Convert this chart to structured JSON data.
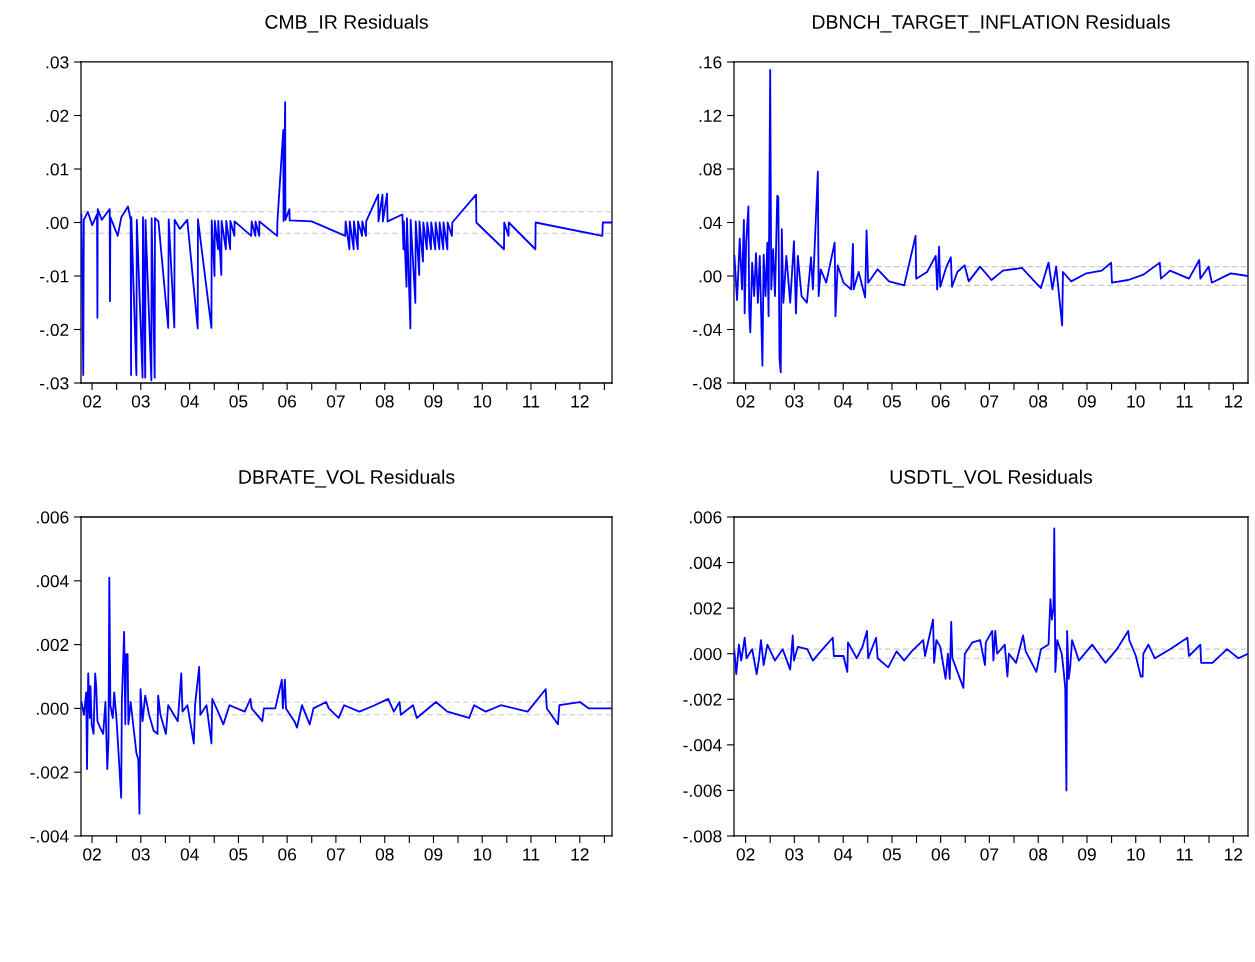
{
  "chart_data": [
    {
      "type": "line",
      "title": "CMB_IR Residuals",
      "xlim": [
        "2002-04-09",
        "2013-02-27"
      ],
      "ylim": [
        -0.03,
        0.03
      ],
      "xticks": [
        {
          "value": "2003-01-01",
          "label": null
        },
        {
          "value": "2004-01-01",
          "label": null
        },
        {
          "value": "2005-01-01",
          "label": null
        },
        {
          "value": "2006-01-01",
          "label": null
        },
        {
          "value": "2007-01-01",
          "label": null
        },
        {
          "value": "2008-01-01",
          "label": null
        },
        {
          "value": "2009-01-01",
          "label": null
        },
        {
          "value": "2010-01-01",
          "label": null
        },
        {
          "value": "2011-01-01",
          "label": null
        },
        {
          "value": "2012-01-01",
          "label": null
        },
        {
          "value": "2013-01-01",
          "label": null
        },
        {
          "value": "2002-07-01",
          "label": "02"
        },
        {
          "value": "2003-07-01",
          "label": "03"
        },
        {
          "value": "2004-07-01",
          "label": "04"
        },
        {
          "value": "2005-07-01",
          "label": "05"
        },
        {
          "value": "2006-07-01",
          "label": "06"
        },
        {
          "value": "2007-07-01",
          "label": "07"
        },
        {
          "value": "2008-07-01",
          "label": "08"
        },
        {
          "value": "2009-07-01",
          "label": "09"
        },
        {
          "value": "2010-07-01",
          "label": "10"
        },
        {
          "value": "2011-07-01",
          "label": "11"
        },
        {
          "value": "2012-07-01",
          "label": "12"
        }
      ],
      "yticks": [
        {
          "value": -0.03,
          "label": "-.03"
        },
        {
          "value": -0.02,
          "label": "-.02"
        },
        {
          "value": -0.01,
          "label": "-.01"
        },
        {
          "value": 0,
          "label": ".00"
        },
        {
          "value": 0.01,
          "label": ".01"
        },
        {
          "value": 0.02,
          "label": ".02"
        },
        {
          "value": 0.03,
          "label": ".03"
        }
      ],
      "ref_lines": [
        {
          "axis": "y",
          "value": 0.002,
          "color": "#c8c8c8",
          "line_style": "dashed"
        },
        {
          "axis": "y",
          "value": -0.002,
          "color": "#c8c8c8",
          "line_style": "dashed"
        }
      ],
      "series": [
        {
          "color": "#0000ff",
          "x": [
            "2002-04-12",
            "2002-04-26",
            "2002-04-30",
            "2002-05-30",
            "2002-07-02",
            "2002-08-07",
            "2002-08-10",
            "2002-08-12",
            "2002-09-12",
            "2002-11-10",
            "2002-11-12",
            "2002-11-15",
            "2003-01-09",
            "2003-02-05",
            "2003-03-27",
            "2003-04-16",
            "2003-04-19",
            "2003-04-21",
            "2003-05-29",
            "2003-06-01",
            "2003-07-14",
            "2003-07-17",
            "2003-08-03",
            "2003-08-05",
            "2003-09-18",
            "2003-09-20",
            "2003-10-13",
            "2003-10-15",
            "2003-11-10",
            "2004-01-22",
            "2004-01-26",
            "2004-03-08",
            "2004-03-10",
            "2004-04-19",
            "2004-06-13",
            "2004-08-30",
            "2004-09-01",
            "2004-12-11",
            "2004-12-13",
            "2005-01-03",
            "2005-01-05",
            "2005-01-29",
            "2005-01-31",
            "2005-02-23",
            "2005-02-25",
            "2005-03-29",
            "2005-04-01",
            "2005-04-30",
            "2005-05-02",
            "2005-06-01",
            "2005-06-02",
            "2005-10-05",
            "2005-10-08",
            "2005-11-05",
            "2005-11-06",
            "2005-12-04",
            "2005-12-05",
            "2006-04-17",
            "2006-04-19",
            "2006-06-02",
            "2006-06-04",
            "2006-06-16",
            "2006-06-18",
            "2006-07-18",
            "2006-07-20",
            "2007-01-01",
            "2007-09-09",
            "2007-09-12",
            "2007-10-10",
            "2007-10-13",
            "2007-11-11",
            "2007-11-13",
            "2007-12-12",
            "2007-12-14",
            "2008-01-13",
            "2008-01-15",
            "2008-02-11",
            "2008-02-13",
            "2008-05-13",
            "2008-05-15",
            "2008-06-14",
            "2008-06-17",
            "2008-07-18",
            "2008-07-22",
            "2008-11-10",
            "2008-11-18",
            "2008-11-21",
            "2008-12-11",
            "2008-12-14",
            "2009-01-09",
            "2009-01-11",
            "2009-02-15",
            "2009-02-18",
            "2009-03-16",
            "2009-03-18",
            "2009-04-13",
            "2009-04-16",
            "2009-05-12",
            "2009-05-15",
            "2009-06-12",
            "2009-06-14",
            "2009-07-14",
            "2009-07-17",
            "2009-08-14",
            "2009-08-16",
            "2009-09-12",
            "2009-09-14",
            "2009-10-13",
            "2009-10-15",
            "2009-11-16",
            "2009-11-19",
            "2010-05-16",
            "2010-05-18",
            "2010-12-11",
            "2010-12-13",
            "2011-01-14",
            "2011-01-16",
            "2011-08-03",
            "2011-08-05",
            "2012-12-17",
            "2012-12-20",
            "2013-02-27"
          ],
          "values": [
            0.0015,
            -0.0285,
            0.0005,
            0.002,
            -0.0005,
            0.0015,
            -0.0178,
            0.0025,
            0.0005,
            0.0025,
            -0.0147,
            0.001,
            -0.0025,
            0.001,
            0.003,
            0.0005,
            -0.0285,
            0.001,
            -0.0285,
            0.0005,
            -0.029,
            0.001,
            -0.029,
            0.0005,
            -0.0295,
            0.0008,
            -0.029,
            0.0008,
            0.0002,
            -0.0197,
            0.0006,
            -0.0196,
            0.0005,
            -0.0012,
            0.0005,
            -0.0198,
            0.0006,
            -0.0197,
            0.0004,
            -0.01,
            0.0003,
            -0.005,
            0.0003,
            -0.0098,
            0.0003,
            -0.005,
            0.0003,
            -0.005,
            0.0003,
            -0.0025,
            0.0002,
            -0.0025,
            0.0002,
            -0.0025,
            0.0002,
            -0.0025,
            0.0002,
            -0.0025,
            0.0002,
            0.0173,
            0.0003,
            0.0225,
            0.0005,
            0.0025,
            0.0004,
            0.0002,
            -0.0025,
            0.0002,
            -0.005,
            0.0002,
            -0.005,
            0.0002,
            -0.005,
            0.0002,
            -0.0025,
            0.0002,
            -0.0025,
            0.0002,
            0.0052,
            0.0002,
            0.0052,
            0.0002,
            0.0054,
            0.0002,
            0.0015,
            -0.005,
            0.0002,
            -0.012,
            0.0008,
            -0.0198,
            0.0005,
            -0.015,
            0.0002,
            -0.0098,
            0.0002,
            -0.0073,
            0.0,
            -0.005,
            0.0,
            -0.005,
            0.0,
            -0.005,
            0.0,
            -0.005,
            0.0,
            -0.005,
            0.0,
            -0.005,
            0.0,
            -0.0025,
            0.0,
            0.0052,
            0.0,
            -0.005,
            0.0,
            -0.0025,
            0.0,
            -0.005,
            0.0,
            -0.0025,
            0.0,
            0.0
          ]
        }
      ]
    },
    {
      "type": "line",
      "title": "DBNCH_TARGET_INFLATION Residuals",
      "xlim": [
        "2002-04-05",
        "2012-10-19"
      ],
      "ylim": [
        -0.08,
        0.16
      ],
      "xticks": [
        {
          "value": "2003-01-01",
          "label": null
        },
        {
          "value": "2004-01-01",
          "label": null
        },
        {
          "value": "2005-01-01",
          "label": null
        },
        {
          "value": "2006-01-01",
          "label": null
        },
        {
          "value": "2007-01-01",
          "label": null
        },
        {
          "value": "2008-01-01",
          "label": null
        },
        {
          "value": "2009-01-01",
          "label": null
        },
        {
          "value": "2010-01-01",
          "label": null
        },
        {
          "value": "2011-01-01",
          "label": null
        },
        {
          "value": "2012-01-01",
          "label": null
        },
        {
          "value": "2002-07-01",
          "label": "02"
        },
        {
          "value": "2003-07-01",
          "label": "03"
        },
        {
          "value": "2004-07-01",
          "label": "04"
        },
        {
          "value": "2005-07-01",
          "label": "05"
        },
        {
          "value": "2006-07-01",
          "label": "06"
        },
        {
          "value": "2007-07-01",
          "label": "07"
        },
        {
          "value": "2008-07-01",
          "label": "08"
        },
        {
          "value": "2009-07-01",
          "label": "09"
        },
        {
          "value": "2010-07-01",
          "label": "10"
        },
        {
          "value": "2011-07-01",
          "label": "11"
        },
        {
          "value": "2012-07-01",
          "label": "12"
        }
      ],
      "yticks": [
        {
          "value": -0.08,
          "label": "-.08"
        },
        {
          "value": -0.04,
          "label": "-.04"
        },
        {
          "value": 0,
          "label": ".00"
        },
        {
          "value": 0.04,
          "label": ".04"
        },
        {
          "value": 0.08,
          "label": ".08"
        },
        {
          "value": 0.12,
          "label": ".12"
        },
        {
          "value": 0.16,
          "label": ".16"
        }
      ],
      "ref_lines": [
        {
          "axis": "y",
          "value": 0.007,
          "color": "#c8c8c8",
          "line_style": "dashed"
        },
        {
          "axis": "y",
          "value": -0.007,
          "color": "#c8c8c8",
          "line_style": "dashed"
        }
      ],
      "series": [
        {
          "color": "#0000ff",
          "x": [
            "2002-04-08",
            "2002-04-28",
            "2002-05-18",
            "2002-06-04",
            "2002-06-18",
            "2002-06-24",
            "2002-07-05",
            "2002-07-22",
            "2002-07-28",
            "2002-08-05",
            "2002-08-19",
            "2002-09-03",
            "2002-09-17",
            "2002-10-01",
            "2002-10-15",
            "2002-11-04",
            "2002-11-13",
            "2002-11-27",
            "2002-12-11",
            "2002-12-20",
            "2003-01-01",
            "2003-01-09",
            "2003-01-23",
            "2003-02-06",
            "2003-02-23",
            "2003-03-03",
            "2003-03-12",
            "2003-03-21",
            "2003-03-29",
            "2003-04-10",
            "2003-05-02",
            "2003-05-31",
            "2003-06-28",
            "2003-07-13",
            "2003-07-27",
            "2003-08-24",
            "2003-10-03",
            "2003-11-03",
            "2003-11-17",
            "2003-12-24",
            "2003-12-30",
            "2004-01-14",
            "2004-02-25",
            "2004-04-28",
            "2004-05-04",
            "2004-05-21",
            "2004-07-03",
            "2004-08-29",
            "2004-09-12",
            "2004-09-17",
            "2004-10-25",
            "2004-12-12",
            "2004-12-23",
            "2005-01-04",
            "2005-03-16",
            "2005-06-09",
            "2005-10-01",
            "2005-12-25",
            "2005-12-30",
            "2006-03-21",
            "2006-05-25",
            "2006-06-05",
            "2006-06-19",
            "2006-06-28",
            "2006-08-10",
            "2006-09-15",
            "2006-09-24",
            "2006-11-03",
            "2006-12-27",
            "2007-01-27",
            "2007-04-22",
            "2007-07-17",
            "2007-10-10",
            "2008-03-01",
            "2008-05-25",
            "2008-07-21",
            "2008-09-16",
            "2008-10-15",
            "2008-11-12",
            "2008-12-27",
            "2009-01-02",
            "2009-03-05",
            "2009-06-27",
            "2009-10-19",
            "2009-12-29",
            "2010-01-04",
            "2010-05-06",
            "2010-08-27",
            "2010-12-28",
            "2011-01-06",
            "2011-03-15",
            "2011-08-04",
            "2011-10-20",
            "2011-10-28",
            "2011-12-29",
            "2012-01-22",
            "2012-06-12",
            "2012-10-18"
          ],
          "values": [
            0.015,
            -0.018,
            0.028,
            -0.01,
            0.042,
            -0.028,
            0.025,
            0.052,
            -0.025,
            -0.042,
            0.01,
            -0.015,
            0.017,
            -0.02,
            0.015,
            -0.067,
            0.016,
            -0.015,
            0.025,
            -0.03,
            0.154,
            -0.01,
            0.02,
            -0.015,
            0.06,
            0.059,
            -0.062,
            -0.072,
            0.035,
            -0.02,
            0.015,
            -0.02,
            0.026,
            -0.028,
            0.015,
            -0.015,
            -0.02,
            0.014,
            -0.01,
            0.078,
            -0.015,
            0.005,
            -0.005,
            0.025,
            -0.03,
            0.008,
            -0.005,
            -0.01,
            0.024,
            -0.01,
            0.003,
            -0.016,
            0.034,
            -0.005,
            0.005,
            -0.004,
            -0.007,
            0.03,
            -0.002,
            0.003,
            0.015,
            -0.01,
            0.022,
            -0.008,
            0.006,
            0.014,
            -0.008,
            0.003,
            0.008,
            -0.004,
            0.007,
            -0.003,
            0.004,
            0.006,
            -0.003,
            -0.009,
            0.01,
            -0.01,
            0.007,
            -0.037,
            0.003,
            -0.004,
            0.002,
            0.004,
            0.01,
            -0.005,
            -0.003,
            0.001,
            0.01,
            -0.002,
            0.004,
            -0.002,
            0.012,
            -0.002,
            0.007,
            -0.005,
            0.002,
            0.0
          ]
        }
      ]
    },
    {
      "type": "line",
      "title": "DBRATE_VOL Residuals",
      "xlim": [
        "2002-04-09",
        "2013-02-27"
      ],
      "ylim": [
        -0.004,
        0.006
      ],
      "xticks": [
        {
          "value": "2003-01-01",
          "label": null
        },
        {
          "value": "2004-01-01",
          "label": null
        },
        {
          "value": "2005-01-01",
          "label": null
        },
        {
          "value": "2006-01-01",
          "label": null
        },
        {
          "value": "2007-01-01",
          "label": null
        },
        {
          "value": "2008-01-01",
          "label": null
        },
        {
          "value": "2009-01-01",
          "label": null
        },
        {
          "value": "2010-01-01",
          "label": null
        },
        {
          "value": "2011-01-01",
          "label": null
        },
        {
          "value": "2012-01-01",
          "label": null
        },
        {
          "value": "2013-01-01",
          "label": null
        },
        {
          "value": "2002-07-01",
          "label": "02"
        },
        {
          "value": "2003-07-01",
          "label": "03"
        },
        {
          "value": "2004-07-01",
          "label": "04"
        },
        {
          "value": "2005-07-01",
          "label": "05"
        },
        {
          "value": "2006-07-01",
          "label": "06"
        },
        {
          "value": "2007-07-01",
          "label": "07"
        },
        {
          "value": "2008-07-01",
          "label": "08"
        },
        {
          "value": "2009-07-01",
          "label": "09"
        },
        {
          "value": "2010-07-01",
          "label": "10"
        },
        {
          "value": "2011-07-01",
          "label": "11"
        },
        {
          "value": "2012-07-01",
          "label": "12"
        }
      ],
      "yticks": [
        {
          "value": -0.004,
          "label": "-.004"
        },
        {
          "value": -0.002,
          "label": "-.002"
        },
        {
          "value": 0,
          "label": ".000"
        },
        {
          "value": 0.002,
          "label": ".002"
        },
        {
          "value": 0.004,
          "label": ".004"
        },
        {
          "value": 0.006,
          "label": ".006"
        }
      ],
      "ref_lines": [
        {
          "axis": "y",
          "value": 0.0002,
          "color": "#c8c8c8",
          "line_style": "dashed"
        },
        {
          "axis": "y",
          "value": -0.0002,
          "color": "#c8c8c8",
          "line_style": "dashed"
        }
      ],
      "series": [
        {
          "color": "#0000ff",
          "x": [
            "2002-04-12",
            "2002-05-01",
            "2002-05-18",
            "2002-05-24",
            "2002-06-02",
            "2002-06-14",
            "2002-06-19",
            "2002-06-28",
            "2002-07-12",
            "2002-07-24",
            "2002-08-01",
            "2002-08-10",
            "2002-08-30",
            "2002-09-22",
            "2002-10-09",
            "2002-10-23",
            "2002-11-01",
            "2002-11-07",
            "2002-11-15",
            "2002-12-03",
            "2002-12-14",
            "2003-01-01",
            "2003-02-04",
            "2003-02-09",
            "2003-02-26",
            "2003-03-07",
            "2003-03-13",
            "2003-03-24",
            "2003-03-30",
            "2003-04-16",
            "2003-05-29",
            "2003-06-12",
            "2003-06-21",
            "2003-06-29",
            "2003-07-14",
            "2003-08-03",
            "2003-09-01",
            "2003-10-05",
            "2003-11-03",
            "2003-11-08",
            "2003-11-25",
            "2004-01-05",
            "2004-01-22",
            "2004-04-03",
            "2004-04-29",
            "2004-05-08",
            "2004-06-14",
            "2004-08-01",
            "2004-08-10",
            "2004-09-10",
            "2004-09-19",
            "2004-11-04",
            "2004-12-11",
            "2004-12-17",
            "2005-01-29",
            "2005-03-10",
            "2005-04-25",
            "2005-08-17",
            "2005-09-29",
            "2005-10-08",
            "2005-12-27",
            "2006-01-08",
            "2006-04-03",
            "2006-05-22",
            "2006-05-30",
            "2006-06-14",
            "2006-06-22",
            "2006-08-24",
            "2006-09-13",
            "2006-10-20",
            "2006-12-17",
            "2007-01-14",
            "2007-04-19",
            "2007-05-09",
            "2007-07-22",
            "2007-09-01",
            "2007-12-24",
            "2008-04-17",
            "2008-07-27",
            "2008-09-07",
            "2008-10-20",
            "2008-10-29",
            "2009-01-29",
            "2009-02-26",
            "2009-07-19",
            "2009-10-13",
            "2010-03-25",
            "2010-05-01",
            "2010-07-27",
            "2010-11-18",
            "2011-06-06",
            "2011-10-19",
            "2011-10-28",
            "2012-01-19",
            "2012-01-30",
            "2012-07-01",
            "2012-09-07",
            "2013-02-26"
          ],
          "values": [
            0.0002,
            -0.0002,
            0.0005,
            -0.0019,
            0.0011,
            -0.0003,
            0.0007,
            -0.0005,
            -0.0008,
            0.0011,
            0.0007,
            -0.0004,
            -0.0006,
            -0.0008,
            0.0002,
            -0.0019,
            -0.001,
            0.0041,
            0.0001,
            -0.0003,
            0.0005,
            -0.0004,
            -0.0028,
            0.0002,
            0.0024,
            -0.0005,
            0.0017,
            0.0017,
            -0.0005,
            0.0002,
            -0.0014,
            -0.0016,
            -0.0033,
            0.0006,
            -0.0004,
            0.0004,
            -0.0002,
            -0.0007,
            -0.0008,
            0.0004,
            -0.0002,
            -0.0008,
            0.0001,
            -0.0004,
            0.0011,
            -0.0001,
            0.0001,
            -0.0011,
            0.0001,
            0.0013,
            -0.0002,
            0.0001,
            -0.0011,
            0.0003,
            -0.0001,
            -0.0005,
            0.0001,
            -0.0001,
            0.0003,
            0.0,
            -0.0004,
            0.0,
            0.0,
            0.0009,
            0.0,
            0.0009,
            0.0,
            -0.0004,
            -0.0006,
            0.0001,
            -0.0005,
            0.0,
            0.0002,
            0.0,
            -0.0003,
            0.0001,
            -0.0001,
            0.0001,
            0.0003,
            -0.0001,
            0.0002,
            -0.0002,
            0.0001,
            -0.0003,
            0.0002,
            -0.0001,
            -0.0003,
            0.0001,
            -0.0001,
            0.0001,
            -0.0001,
            0.0006,
            0.0,
            -0.0005,
            0.0001,
            0.0002,
            0.0,
            0.0
          ]
        }
      ]
    },
    {
      "type": "line",
      "title": "USDTL_VOL Residuals",
      "xlim": [
        "2002-04-05",
        "2012-10-19"
      ],
      "ylim": [
        -0.008,
        0.006
      ],
      "xticks": [
        {
          "value": "2003-01-01",
          "label": null
        },
        {
          "value": "2004-01-01",
          "label": null
        },
        {
          "value": "2005-01-01",
          "label": null
        },
        {
          "value": "2006-01-01",
          "label": null
        },
        {
          "value": "2007-01-01",
          "label": null
        },
        {
          "value": "2008-01-01",
          "label": null
        },
        {
          "value": "2009-01-01",
          "label": null
        },
        {
          "value": "2010-01-01",
          "label": null
        },
        {
          "value": "2011-01-01",
          "label": null
        },
        {
          "value": "2012-01-01",
          "label": null
        },
        {
          "value": "2002-07-01",
          "label": "02"
        },
        {
          "value": "2003-07-01",
          "label": "03"
        },
        {
          "value": "2004-07-01",
          "label": "04"
        },
        {
          "value": "2005-07-01",
          "label": "05"
        },
        {
          "value": "2006-07-01",
          "label": "06"
        },
        {
          "value": "2007-07-01",
          "label": "07"
        },
        {
          "value": "2008-07-01",
          "label": "08"
        },
        {
          "value": "2009-07-01",
          "label": "09"
        },
        {
          "value": "2010-07-01",
          "label": "10"
        },
        {
          "value": "2011-07-01",
          "label": "11"
        },
        {
          "value": "2012-07-01",
          "label": "12"
        }
      ],
      "yticks": [
        {
          "value": -0.008,
          "label": "-.008"
        },
        {
          "value": -0.006,
          "label": "-.006"
        },
        {
          "value": -0.004,
          "label": "-.004"
        },
        {
          "value": -0.002,
          "label": "-.002"
        },
        {
          "value": 0,
          "label": ".000"
        },
        {
          "value": 0.002,
          "label": ".002"
        },
        {
          "value": 0.004,
          "label": ".004"
        },
        {
          "value": 0.006,
          "label": ".006"
        }
      ],
      "ref_lines": [
        {
          "axis": "y",
          "value": 0.0002,
          "color": "#c8c8c8",
          "line_style": "dashed"
        },
        {
          "axis": "y",
          "value": -0.0002,
          "color": "#c8c8c8",
          "line_style": "dashed"
        }
      ],
      "series": [
        {
          "color": "#0000ff",
          "x": [
            "2002-04-08",
            "2002-04-22",
            "2002-05-12",
            "2002-05-29",
            "2002-06-24",
            "2002-07-08",
            "2002-08-19",
            "2002-09-22",
            "2002-10-10",
            "2002-10-24",
            "2002-11-13",
            "2002-12-11",
            "2003-02-06",
            "2003-04-04",
            "2003-05-31",
            "2003-06-19",
            "2003-06-28",
            "2003-07-27",
            "2003-10-06",
            "2003-11-17",
            "2004-01-14",
            "2004-04-14",
            "2004-04-22",
            "2004-07-03",
            "2004-08-01",
            "2004-08-06",
            "2004-10-10",
            "2004-11-22",
            "2004-12-26",
            "2005-01-04",
            "2005-03-04",
            "2005-03-16",
            "2005-06-03",
            "2005-08-05",
            "2005-10-01",
            "2005-11-26",
            "2006-02-20",
            "2006-03-06",
            "2006-05-05",
            "2006-05-13",
            "2006-05-30",
            "2006-06-28",
            "2006-08-07",
            "2006-08-24",
            "2006-09-07",
            "2006-09-18",
            "2006-09-27",
            "2006-12-18",
            "2006-12-29",
            "2007-02-24",
            "2007-04-22",
            "2007-05-29",
            "2007-06-04",
            "2007-07-22",
            "2007-07-31",
            "2007-08-14",
            "2007-08-28",
            "2007-10-24",
            "2007-11-13",
            "2007-11-24",
            "2008-01-17",
            "2008-03-09",
            "2008-03-29",
            "2008-06-17",
            "2008-07-21",
            "2008-09-16",
            "2008-09-30",
            "2008-10-11",
            "2008-10-23",
            "2008-10-29",
            "2008-11-06",
            "2008-11-20",
            "2008-12-24",
            "2009-01-08",
            "2009-01-19",
            "2009-01-28",
            "2009-02-02",
            "2009-02-14",
            "2009-02-25",
            "2009-03-11",
            "2009-05-01",
            "2009-08-09",
            "2009-11-16",
            "2010-02-10",
            "2010-05-06",
            "2010-05-14",
            "2010-07-02",
            "2010-08-08",
            "2010-08-22",
            "2010-08-27",
            "2010-10-04",
            "2010-11-21",
            "2011-03-15",
            "2011-07-23",
            "2011-08-04",
            "2011-10-28",
            "2011-11-03",
            "2012-01-27",
            "2012-05-15",
            "2012-08-08",
            "2012-10-18"
          ],
          "values": [
            0.0001,
            -0.0009,
            0.0004,
            -0.0003,
            0.0007,
            -0.0002,
            0.0002,
            -0.0009,
            -0.0002,
            0.0006,
            -0.0005,
            0.0004,
            -0.0003,
            0.0002,
            -0.0007,
            0.0008,
            -0.0003,
            0.0003,
            0.0002,
            -0.0003,
            0.0001,
            0.0007,
            -0.0001,
            -0.0001,
            -0.0008,
            0.0005,
            -0.0002,
            0.0003,
            0.001,
            -0.0002,
            0.0007,
            -0.0002,
            -0.0006,
            0.0001,
            -0.0003,
            0.0001,
            0.0006,
            -0.0001,
            0.0015,
            -0.0004,
            0.0006,
            0.0003,
            -0.0011,
            0.0,
            -0.0011,
            0.0014,
            -0.0002,
            -0.0015,
            0.0,
            0.0005,
            0.0006,
            -0.0005,
            0.0005,
            0.001,
            -0.0003,
            0.001,
            0.0,
            0.0004,
            -0.001,
            0.0,
            -0.0004,
            0.0008,
            0.0001,
            -0.0008,
            0.0002,
            0.0004,
            0.0024,
            0.0015,
            0.002,
            0.0055,
            -0.0008,
            0.0006,
            0.0,
            -0.0008,
            -0.0015,
            -0.006,
            0.001,
            -0.0011,
            -0.0006,
            0.0006,
            -0.0003,
            0.0004,
            -0.0004,
            0.0002,
            0.001,
            0.0006,
            -0.0001,
            -0.001,
            -0.001,
            0.0,
            0.0004,
            -0.0002,
            0.0002,
            0.0007,
            -0.0001,
            0.0004,
            -0.0004,
            -0.0004,
            0.0002,
            -0.0002,
            0.0
          ]
        }
      ]
    }
  ]
}
